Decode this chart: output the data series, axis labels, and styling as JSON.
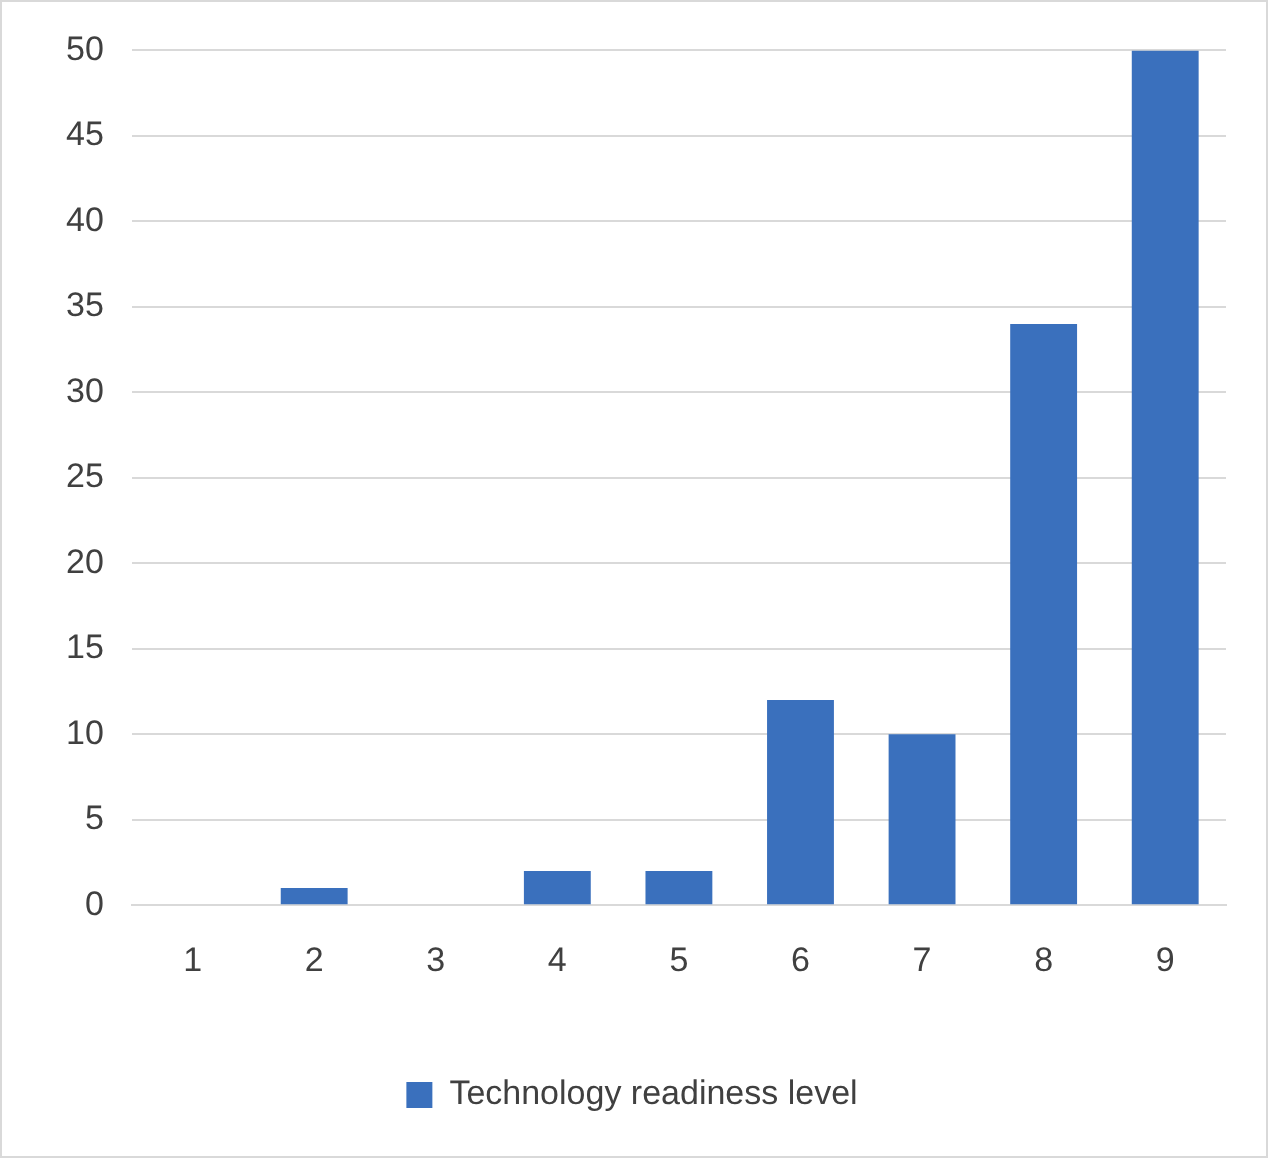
{
  "chart_data": {
    "type": "bar",
    "categories": [
      "1",
      "2",
      "3",
      "4",
      "5",
      "6",
      "7",
      "8",
      "9"
    ],
    "series": [
      {
        "name": "Technology readiness level",
        "color": "#3a70bd",
        "values": [
          0,
          1,
          0,
          2,
          2,
          12,
          10,
          34,
          50
        ]
      }
    ],
    "ylim": [
      0,
      50
    ],
    "yticks": [
      0,
      5,
      10,
      15,
      20,
      25,
      30,
      35,
      40,
      45,
      50
    ],
    "grid": "y",
    "legend": "bottom"
  }
}
